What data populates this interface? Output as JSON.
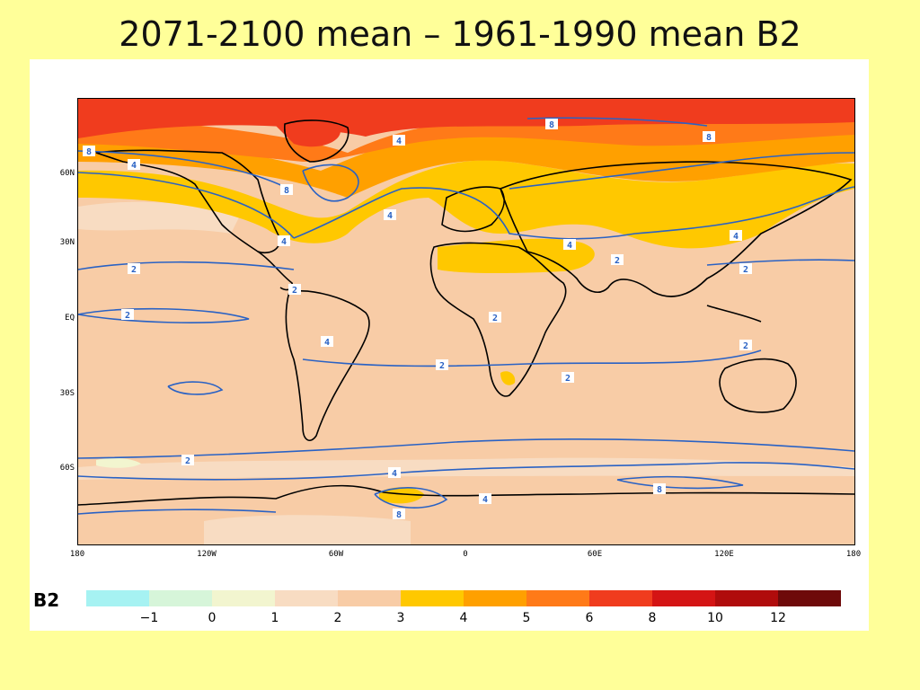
{
  "slide": {
    "title": "2071-2100 mean – 1961-1990 mean B2"
  },
  "map": {
    "latitude_labels": [
      "60N",
      "30N",
      "EQ",
      "30S",
      "60S"
    ],
    "longitude_labels": [
      "180",
      "120W",
      "60W",
      "0",
      "60E",
      "120E",
      "180"
    ],
    "contour_labels": [
      "2",
      "2",
      "2",
      "2",
      "2",
      "2",
      "2",
      "2",
      "2",
      "2",
      "4",
      "4",
      "4",
      "4",
      "4",
      "4",
      "4",
      "4",
      "4",
      "8",
      "8",
      "8",
      "8",
      "8",
      "8"
    ]
  },
  "legend": {
    "title": "B2",
    "tick_labels": [
      "−1",
      "0",
      "1",
      "2",
      "3",
      "4",
      "5",
      "6",
      "8",
      "10",
      "12"
    ],
    "colors": [
      "#A6F2F2",
      "#D6F5D9",
      "#F2F5CF",
      "#F8DCC2",
      "#F8CCA6",
      "#FFC800",
      "#FFA000",
      "#FF7A18",
      "#F03C1E",
      "#D41414",
      "#B00C0C",
      "#6E0A0A"
    ]
  },
  "colors": {
    "slide_background": "#FFFF99",
    "land_outline": "#000000",
    "contour_line": "#2A62C4"
  }
}
